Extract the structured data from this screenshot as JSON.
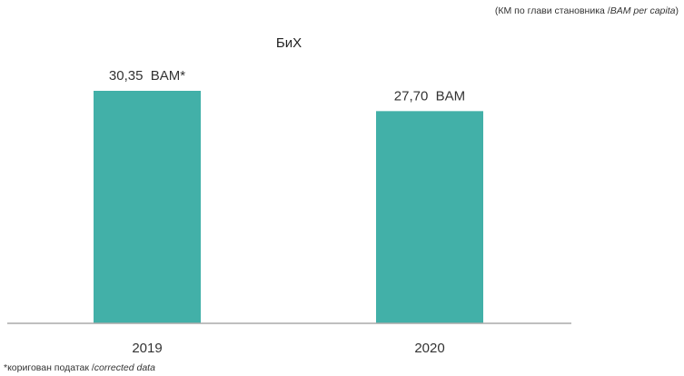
{
  "unit_note": {
    "prefix": "(КМ по глави становника /",
    "italic": "BAM per capita",
    "suffix": ")"
  },
  "footnote": {
    "prefix": "*коригован податак /",
    "italic": "corrected data"
  },
  "chart_data": {
    "type": "bar",
    "title": "БиХ",
    "categories": [
      "2019",
      "2020"
    ],
    "values": [
      30.35,
      27.7
    ],
    "data_labels": [
      "30,35  BAM*",
      "27,70  BAM"
    ],
    "bar_color": "#42B0A8",
    "axis_color": "#AAAAAA",
    "ylim": [
      0,
      30.35
    ],
    "grid": false,
    "legend": "none"
  }
}
